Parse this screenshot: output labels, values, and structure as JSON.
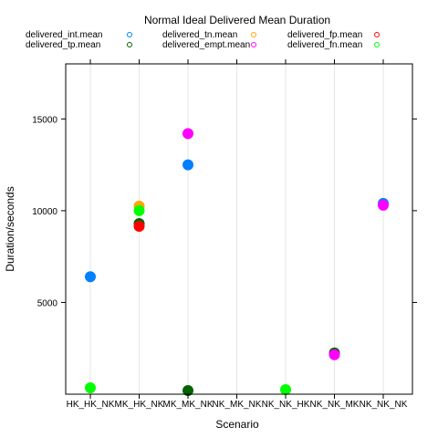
{
  "chart_data": {
    "type": "scatter",
    "title": "Normal Ideal Delivered Mean Duration",
    "xlabel": "Scenario",
    "ylabel": "Duration/seconds",
    "categories": [
      "HK_HK_NK",
      "MK_HK_NK",
      "MK_MK_NK",
      "NK_MK_NK",
      "NK_NK_HK",
      "NK_NK_MK",
      "NK_NK_NK"
    ],
    "ylim": [
      0,
      18000
    ],
    "yticks": [
      5000,
      10000,
      15000
    ],
    "ytick_labels": [
      "5000",
      "10000",
      "15000"
    ],
    "grid": "vertical",
    "legend_position": "top",
    "series": [
      {
        "name": "delivered_int.mean",
        "color": "#0080ff",
        "values": [
          6400,
          null,
          12500,
          null,
          null,
          null,
          10400
        ]
      },
      {
        "name": "delivered_tp.mean",
        "color": "#006400",
        "values": [
          null,
          9300,
          200,
          null,
          null,
          2250,
          null
        ]
      },
      {
        "name": "delivered_tn.mean",
        "color": "#ffa500",
        "values": [
          null,
          10250,
          null,
          null,
          null,
          null,
          null
        ]
      },
      {
        "name": "delivered_empt.mean",
        "color": "#ff00ff",
        "values": [
          null,
          null,
          14200,
          null,
          null,
          2150,
          10300
        ]
      },
      {
        "name": "delivered_fp.mean",
        "color": "#ff0000",
        "values": [
          null,
          9150,
          null,
          null,
          null,
          null,
          null
        ]
      },
      {
        "name": "delivered_fn.mean",
        "color": "#00ff00",
        "values": [
          350,
          10000,
          null,
          null,
          250,
          null,
          null
        ]
      }
    ]
  }
}
